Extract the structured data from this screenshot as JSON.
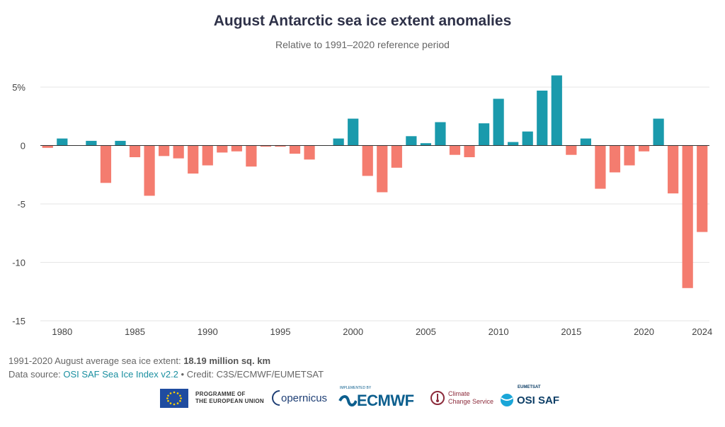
{
  "title": "August Antarctic sea ice extent anomalies",
  "subtitle": "Relative to 1991–2020 reference period",
  "footer": {
    "line1_prefix": "1991-2020 August average sea ice extent: ",
    "line1_value": "18.19 million sq. km",
    "line2_prefix": "Data source: ",
    "line2_link": "OSI SAF Sea Ice Index v2.2",
    "line2_suffix": " • Credit: C3S/ECMWF/EUMETSAT"
  },
  "logos": {
    "eu_line1": "PROGRAMME OF",
    "eu_line2": "THE EUROPEAN UNION",
    "copernicus": "opernicus",
    "ecmwf_small": "IMPLEMENTED BY",
    "ecmwf": "ECMWF",
    "c3s_line1": "Climate",
    "c3s_line2": "Change Service",
    "osi_small": "EUMETSAT",
    "osi": "OSI SAF"
  },
  "colors": {
    "positive": "#1a9aac",
    "negative": "#f47c6f",
    "title": "#2e3148"
  },
  "chart_data": {
    "type": "bar",
    "title": "August Antarctic sea ice extent anomalies",
    "subtitle": "Relative to 1991–2020 reference period",
    "xlabel": "",
    "ylabel": "",
    "ylim": [
      -15,
      6
    ],
    "yticks": [
      5,
      0,
      -5,
      -10,
      -15
    ],
    "ytick_labels": [
      "5%",
      "0",
      "-5",
      "-10",
      "-15"
    ],
    "xticks": [
      1980,
      1985,
      1990,
      1995,
      2000,
      2005,
      2010,
      2015,
      2020,
      2024
    ],
    "x": [
      1979,
      1980,
      1981,
      1982,
      1983,
      1984,
      1985,
      1986,
      1987,
      1988,
      1989,
      1990,
      1991,
      1992,
      1993,
      1994,
      1995,
      1996,
      1997,
      1998,
      1999,
      2000,
      2001,
      2002,
      2003,
      2004,
      2005,
      2006,
      2007,
      2008,
      2009,
      2010,
      2011,
      2012,
      2013,
      2014,
      2015,
      2016,
      2017,
      2018,
      2019,
      2020,
      2021,
      2022,
      2023,
      2024
    ],
    "values": [
      -0.2,
      0.6,
      0.0,
      0.4,
      -3.2,
      0.4,
      -1.0,
      -4.3,
      -0.9,
      -1.1,
      -2.4,
      -1.7,
      -0.6,
      -0.5,
      -1.8,
      -0.1,
      -0.1,
      -0.7,
      -1.2,
      0.0,
      0.6,
      2.3,
      -2.6,
      -4.0,
      -1.9,
      0.8,
      0.2,
      2.0,
      -0.8,
      -1.0,
      1.9,
      4.0,
      0.3,
      1.2,
      4.7,
      6.0,
      -0.8,
      0.6,
      -3.7,
      -2.3,
      -1.7,
      -0.5,
      2.3,
      -4.1,
      -12.2,
      -7.4
    ],
    "grid": true,
    "legend": "none"
  }
}
